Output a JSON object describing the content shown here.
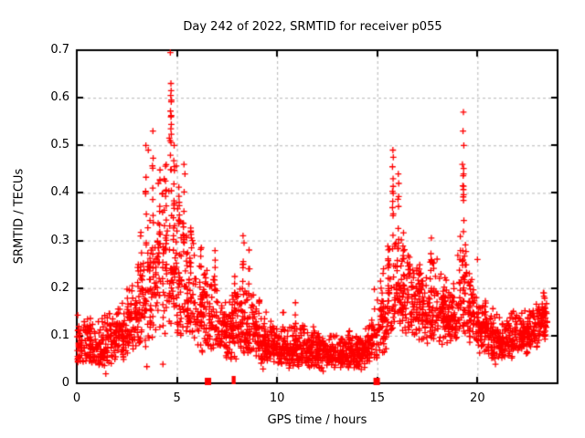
{
  "figure": {
    "background": "#ffffff",
    "marker_color": "#ff0000",
    "grid_color": "#b5b5b5",
    "axis_color": "#000000",
    "text_color": "#000000"
  },
  "chart_data": {
    "type": "scatter",
    "title": "Day 242 of 2022, SRMTID for receiver p055",
    "xlabel": "GPS time / hours",
    "ylabel": "SRMTID / TECUs",
    "xlim": [
      0,
      24
    ],
    "ylim": [
      0,
      0.7
    ],
    "grid": true,
    "legend": "none",
    "marker": "plus",
    "xticks": [
      {
        "v": 0,
        "label": "0"
      },
      {
        "v": 5,
        "label": "5"
      },
      {
        "v": 10,
        "label": "10"
      },
      {
        "v": 15,
        "label": "15"
      },
      {
        "v": 20,
        "label": "20"
      }
    ],
    "yticks": [
      {
        "v": 0.0,
        "label": "0"
      },
      {
        "v": 0.1,
        "label": "0.1"
      },
      {
        "v": 0.2,
        "label": "0.2"
      },
      {
        "v": 0.3,
        "label": "0.3"
      },
      {
        "v": 0.4,
        "label": "0.4"
      },
      {
        "v": 0.5,
        "label": "0.5"
      },
      {
        "v": 0.6,
        "label": "0.6"
      },
      {
        "v": 0.7,
        "label": "0.7"
      }
    ],
    "seed": 20220242,
    "bin_width": 0.5,
    "t_max": 23.55,
    "band_bins": [
      [
        0.0,
        55,
        0.04,
        0.15
      ],
      [
        0.5,
        55,
        0.04,
        0.14
      ],
      [
        1.0,
        55,
        0.03,
        0.15
      ],
      [
        1.5,
        55,
        0.04,
        0.17
      ],
      [
        2.0,
        55,
        0.05,
        0.19
      ],
      [
        2.5,
        55,
        0.06,
        0.23
      ],
      [
        3.0,
        55,
        0.07,
        0.3
      ],
      [
        3.5,
        55,
        0.08,
        0.4
      ],
      [
        4.0,
        55,
        0.1,
        0.46
      ],
      [
        4.5,
        55,
        0.1,
        0.5
      ],
      [
        5.0,
        55,
        0.09,
        0.42
      ],
      [
        5.5,
        55,
        0.07,
        0.33
      ],
      [
        6.0,
        55,
        0.06,
        0.28
      ],
      [
        6.5,
        50,
        0.05,
        0.24
      ],
      [
        7.0,
        55,
        0.05,
        0.19
      ],
      [
        7.5,
        55,
        0.05,
        0.21
      ],
      [
        8.0,
        55,
        0.06,
        0.22
      ],
      [
        8.5,
        55,
        0.05,
        0.2
      ],
      [
        9.0,
        55,
        0.04,
        0.16
      ],
      [
        9.5,
        55,
        0.04,
        0.14
      ],
      [
        10.0,
        55,
        0.03,
        0.13
      ],
      [
        10.5,
        55,
        0.03,
        0.14
      ],
      [
        11.0,
        55,
        0.03,
        0.13
      ],
      [
        11.5,
        55,
        0.03,
        0.12
      ],
      [
        12.0,
        55,
        0.03,
        0.11
      ],
      [
        12.5,
        55,
        0.03,
        0.11
      ],
      [
        13.0,
        55,
        0.03,
        0.11
      ],
      [
        13.5,
        55,
        0.03,
        0.12
      ],
      [
        14.0,
        55,
        0.03,
        0.12
      ],
      [
        14.5,
        50,
        0.04,
        0.16
      ],
      [
        15.0,
        50,
        0.06,
        0.22
      ],
      [
        15.5,
        55,
        0.09,
        0.34
      ],
      [
        16.0,
        55,
        0.1,
        0.32
      ],
      [
        16.5,
        55,
        0.1,
        0.28
      ],
      [
        17.0,
        55,
        0.08,
        0.26
      ],
      [
        17.5,
        55,
        0.09,
        0.28
      ],
      [
        18.0,
        55,
        0.08,
        0.24
      ],
      [
        18.5,
        55,
        0.08,
        0.22
      ],
      [
        19.0,
        55,
        0.09,
        0.32
      ],
      [
        19.5,
        55,
        0.08,
        0.24
      ],
      [
        20.0,
        55,
        0.06,
        0.19
      ],
      [
        20.5,
        55,
        0.05,
        0.16
      ],
      [
        21.0,
        55,
        0.05,
        0.15
      ],
      [
        21.5,
        55,
        0.05,
        0.16
      ],
      [
        22.0,
        55,
        0.06,
        0.16
      ],
      [
        22.5,
        55,
        0.07,
        0.17
      ],
      [
        23.0,
        60,
        0.09,
        0.19
      ]
    ],
    "spike_columns": [
      {
        "t": 3.2,
        "v0": 0.22,
        "v1": 0.34,
        "n": 5
      },
      {
        "t": 3.45,
        "v0": 0.28,
        "v1": 0.46,
        "n": 7
      },
      {
        "t": 3.8,
        "v0": 0.3,
        "v1": 0.5,
        "n": 7
      },
      {
        "t": 4.15,
        "v0": 0.28,
        "v1": 0.45,
        "n": 8
      },
      {
        "t": 4.45,
        "v0": 0.3,
        "v1": 0.48,
        "n": 8
      },
      {
        "t": 4.7,
        "v0": 0.4,
        "v1": 0.6,
        "n": 10
      },
      {
        "t": 4.86,
        "v0": 0.32,
        "v1": 0.48,
        "n": 6
      },
      {
        "t": 5.1,
        "v0": 0.28,
        "v1": 0.42,
        "n": 6
      },
      {
        "t": 5.35,
        "v0": 0.26,
        "v1": 0.42,
        "n": 6
      },
      {
        "t": 5.7,
        "v0": 0.22,
        "v1": 0.34,
        "n": 5
      },
      {
        "t": 6.2,
        "v0": 0.18,
        "v1": 0.3,
        "n": 5
      },
      {
        "t": 6.9,
        "v0": 0.16,
        "v1": 0.28,
        "n": 5
      },
      {
        "t": 7.9,
        "v0": 0.15,
        "v1": 0.24,
        "n": 5
      },
      {
        "t": 8.3,
        "v0": 0.18,
        "v1": 0.29,
        "n": 6
      },
      {
        "t": 8.6,
        "v0": 0.15,
        "v1": 0.26,
        "n": 5
      },
      {
        "t": 9.1,
        "v0": 0.12,
        "v1": 0.18,
        "n": 4
      },
      {
        "t": 10.3,
        "v0": 0.1,
        "v1": 0.15,
        "n": 4
      },
      {
        "t": 10.9,
        "v0": 0.1,
        "v1": 0.17,
        "n": 4
      },
      {
        "t": 11.8,
        "v0": 0.09,
        "v1": 0.13,
        "n": 3
      },
      {
        "t": 13.6,
        "v0": 0.08,
        "v1": 0.12,
        "n": 3
      },
      {
        "t": 14.85,
        "v0": 0.1,
        "v1": 0.2,
        "n": 5
      },
      {
        "t": 15.3,
        "v0": 0.12,
        "v1": 0.26,
        "n": 6
      },
      {
        "t": 15.55,
        "v0": 0.15,
        "v1": 0.3,
        "n": 6
      },
      {
        "t": 15.78,
        "v0": 0.26,
        "v1": 0.45,
        "n": 9
      },
      {
        "t": 16.05,
        "v0": 0.22,
        "v1": 0.4,
        "n": 8
      },
      {
        "t": 16.3,
        "v0": 0.18,
        "v1": 0.32,
        "n": 6
      },
      {
        "t": 16.55,
        "v0": 0.16,
        "v1": 0.28,
        "n": 5
      },
      {
        "t": 17.1,
        "v0": 0.15,
        "v1": 0.25,
        "n": 5
      },
      {
        "t": 17.7,
        "v0": 0.18,
        "v1": 0.29,
        "n": 6
      },
      {
        "t": 18.2,
        "v0": 0.14,
        "v1": 0.24,
        "n": 5
      },
      {
        "t": 18.7,
        "v0": 0.13,
        "v1": 0.22,
        "n": 4
      },
      {
        "t": 19.3,
        "v0": 0.25,
        "v1": 0.5,
        "n": 10
      },
      {
        "t": 19.6,
        "v0": 0.14,
        "v1": 0.24,
        "n": 5
      },
      {
        "t": 20.4,
        "v0": 0.1,
        "v1": 0.17,
        "n": 4
      },
      {
        "t": 21.9,
        "v0": 0.1,
        "v1": 0.15,
        "n": 3
      },
      {
        "t": 22.8,
        "v0": 0.1,
        "v1": 0.16,
        "n": 4
      },
      {
        "t": 23.3,
        "v0": 0.12,
        "v1": 0.19,
        "n": 5
      }
    ],
    "notable_points": [
      [
        4.67,
        0.695
      ],
      [
        4.7,
        0.63
      ],
      [
        4.71,
        0.615
      ],
      [
        4.69,
        0.605
      ],
      [
        4.72,
        0.595
      ],
      [
        4.7,
        0.56
      ],
      [
        3.8,
        0.53
      ],
      [
        4.62,
        0.515
      ],
      [
        4.66,
        0.51
      ],
      [
        3.45,
        0.5
      ],
      [
        4.86,
        0.5
      ],
      [
        3.57,
        0.49
      ],
      [
        19.3,
        0.57
      ],
      [
        19.28,
        0.53
      ],
      [
        19.32,
        0.5
      ],
      [
        19.25,
        0.46
      ],
      [
        19.31,
        0.44
      ],
      [
        19.27,
        0.415
      ],
      [
        15.78,
        0.49
      ],
      [
        15.8,
        0.475
      ],
      [
        15.76,
        0.455
      ],
      [
        15.79,
        0.43
      ],
      [
        16.05,
        0.44
      ],
      [
        16.07,
        0.42
      ],
      [
        5.35,
        0.46
      ],
      [
        5.4,
        0.44
      ],
      [
        17.7,
        0.305
      ],
      [
        20.0,
        0.26
      ],
      [
        8.3,
        0.31
      ],
      [
        8.35,
        0.295
      ],
      [
        8.6,
        0.28
      ],
      [
        1.45,
        0.02
      ],
      [
        3.5,
        0.035
      ],
      [
        4.3,
        0.04
      ],
      [
        9.3,
        0.03
      ],
      [
        12.3,
        0.025
      ],
      [
        14.2,
        0.029
      ],
      [
        20.9,
        0.04
      ]
    ],
    "zero_markers": {
      "squares": [
        6.55,
        14.97
      ],
      "double_bars": [
        7.78,
        7.86
      ]
    }
  }
}
